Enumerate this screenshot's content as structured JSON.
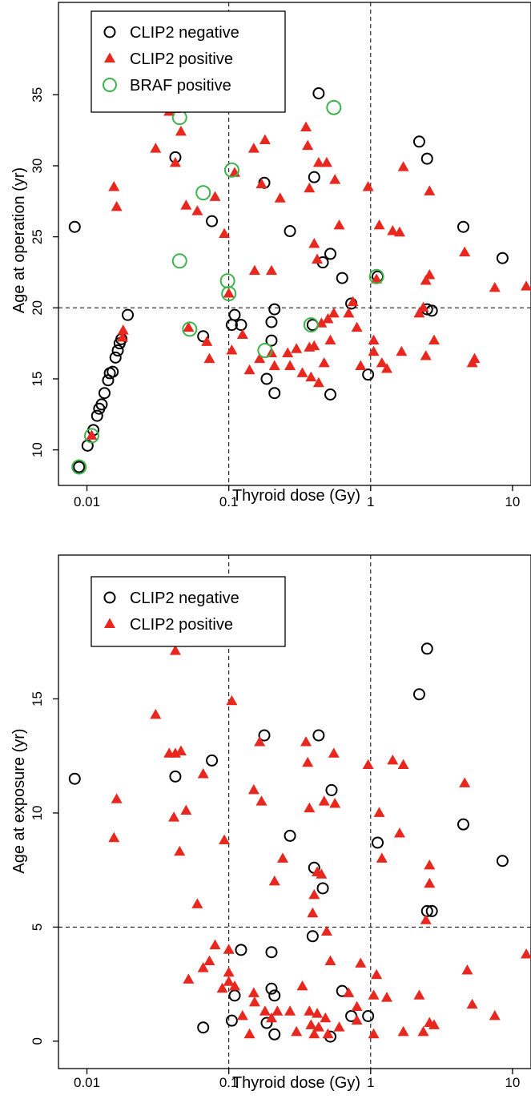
{
  "chart_data": [
    {
      "type": "scatter",
      "title": "",
      "xlabel": "Thyroid dose (Gy)",
      "ylabel": "Age at operation (yr)",
      "x_scale": "log",
      "xlim": [
        0.0063,
        13.5
      ],
      "ylim": [
        7.5,
        41.5
      ],
      "x_ticks": [
        0.01,
        0.1,
        1,
        10
      ],
      "x_tick_labels": [
        "0.01",
        "0.1",
        "1",
        "10"
      ],
      "y_ticks": [
        10,
        15,
        20,
        25,
        30,
        35
      ],
      "y_tick_labels": [
        "10",
        "15",
        "20",
        "25",
        "30",
        "35"
      ],
      "reference_lines": {
        "x": [
          0.1,
          1
        ],
        "y": [
          20
        ]
      },
      "legend_position": "top-left",
      "grid": false,
      "series": [
        {
          "name": "CLIP2 negative",
          "marker": "open-circle",
          "color": "#000000",
          "points": [
            [
              0.0082,
              25.7
            ],
            [
              0.0088,
              8.8
            ],
            [
              0.0101,
              10.3
            ],
            [
              0.0111,
              11.4
            ],
            [
              0.0118,
              12.4
            ],
            [
              0.0122,
              12.9
            ],
            [
              0.0127,
              13.2
            ],
            [
              0.0133,
              14.0
            ],
            [
              0.0141,
              14.9
            ],
            [
              0.0145,
              15.4
            ],
            [
              0.0152,
              15.5
            ],
            [
              0.0159,
              16.5
            ],
            [
              0.0165,
              17.0
            ],
            [
              0.017,
              17.5
            ],
            [
              0.0175,
              17.8
            ],
            [
              0.0194,
              19.5
            ],
            [
              0.042,
              30.6
            ],
            [
              0.066,
              18.0
            ],
            [
              0.076,
              26.1
            ],
            [
              0.105,
              18.8
            ],
            [
              0.11,
              19.5
            ],
            [
              0.122,
              18.8
            ],
            [
              0.178,
              28.8
            ],
            [
              0.185,
              15.0
            ],
            [
              0.2,
              19.0
            ],
            [
              0.21,
              14.0
            ],
            [
              0.2,
              17.7
            ],
            [
              0.21,
              19.9
            ],
            [
              0.27,
              25.4
            ],
            [
              0.39,
              18.8
            ],
            [
              0.4,
              29.2
            ],
            [
              0.43,
              35.1
            ],
            [
              0.46,
              23.2
            ],
            [
              0.52,
              23.8
            ],
            [
              0.63,
              22.1
            ],
            [
              0.73,
              20.3
            ],
            [
              0.52,
              13.9
            ],
            [
              0.96,
              15.3
            ],
            [
              1.12,
              22.2
            ],
            [
              2.2,
              31.7
            ],
            [
              2.5,
              30.5
            ],
            [
              2.5,
              19.9
            ],
            [
              2.7,
              19.8
            ],
            [
              4.5,
              25.7
            ],
            [
              8.5,
              23.5
            ]
          ]
        },
        {
          "name": "CLIP2 positive",
          "marker": "filled-triangle",
          "color": "#e8281e",
          "points": [
            [
              0.0108,
              11.0
            ],
            [
              0.0155,
              28.5
            ],
            [
              0.0162,
              27.1
            ],
            [
              0.0178,
              17.9
            ],
            [
              0.018,
              18.4
            ],
            [
              0.0305,
              31.2
            ],
            [
              0.038,
              33.8
            ],
            [
              0.042,
              30.2
            ],
            [
              0.042,
              34.0
            ],
            [
              0.046,
              32.4
            ],
            [
              0.05,
              27.2
            ],
            [
              0.052,
              18.6
            ],
            [
              0.06,
              26.8
            ],
            [
              0.07,
              17.6
            ],
            [
              0.08,
              27.8
            ],
            [
              0.093,
              25.2
            ],
            [
              0.073,
              16.4
            ],
            [
              0.1,
              21.0
            ],
            [
              0.105,
              17.0
            ],
            [
              0.11,
              29.5
            ],
            [
              0.125,
              18.1
            ],
            [
              0.14,
              15.6
            ],
            [
              0.15,
              31.2
            ],
            [
              0.152,
              22.6
            ],
            [
              0.165,
              16.4
            ],
            [
              0.17,
              28.7
            ],
            [
              0.18,
              31.8
            ],
            [
              0.2,
              22.6
            ],
            [
              0.2,
              16.8
            ],
            [
              0.21,
              15.9
            ],
            [
              0.23,
              27.7
            ],
            [
              0.26,
              16.8
            ],
            [
              0.27,
              15.9
            ],
            [
              0.3,
              17.1
            ],
            [
              0.33,
              15.4
            ],
            [
              0.35,
              32.7
            ],
            [
              0.36,
              31.4
            ],
            [
              0.37,
              28.4
            ],
            [
              0.37,
              17.2
            ],
            [
              0.38,
              15.1
            ],
            [
              0.4,
              17.3
            ],
            [
              0.4,
              24.5
            ],
            [
              0.42,
              23.4
            ],
            [
              0.43,
              30.2
            ],
            [
              0.43,
              14.7
            ],
            [
              0.45,
              18.9
            ],
            [
              0.47,
              16.1
            ],
            [
              0.49,
              30.2
            ],
            [
              0.5,
              19.2
            ],
            [
              0.52,
              17.7
            ],
            [
              0.55,
              19.6
            ],
            [
              0.56,
              29.0
            ],
            [
              0.6,
              25.8
            ],
            [
              0.7,
              19.6
            ],
            [
              0.75,
              20.4
            ],
            [
              0.8,
              18.6
            ],
            [
              0.85,
              15.9
            ],
            [
              0.96,
              28.5
            ],
            [
              1.05,
              17.7
            ],
            [
              1.05,
              16.9
            ],
            [
              1.1,
              22.0
            ],
            [
              1.15,
              25.8
            ],
            [
              1.2,
              16.1
            ],
            [
              1.3,
              15.7
            ],
            [
              1.43,
              25.4
            ],
            [
              1.6,
              25.3
            ],
            [
              1.65,
              16.9
            ],
            [
              1.7,
              29.9
            ],
            [
              2.2,
              19.6
            ],
            [
              2.35,
              20.0
            ],
            [
              2.45,
              16.6
            ],
            [
              2.45,
              21.9
            ],
            [
              2.6,
              28.2
            ],
            [
              2.6,
              22.3
            ],
            [
              2.8,
              17.7
            ],
            [
              4.6,
              23.9
            ],
            [
              5.2,
              16.1
            ],
            [
              5.4,
              16.4
            ],
            [
              7.5,
              21.4
            ],
            [
              12.5,
              21.5
            ]
          ]
        },
        {
          "name": "BRAF positive",
          "marker": "open-circle",
          "color": "#3cb44b",
          "points": [
            [
              0.0088,
              8.8
            ],
            [
              0.0108,
              11.0
            ],
            [
              0.045,
              33.4
            ],
            [
              0.045,
              23.3
            ],
            [
              0.053,
              18.5
            ],
            [
              0.066,
              28.1
            ],
            [
              0.098,
              21.9
            ],
            [
              0.1,
              21.0
            ],
            [
              0.105,
              29.7
            ],
            [
              0.18,
              17.0
            ],
            [
              0.38,
              18.8
            ],
            [
              0.55,
              34.1
            ],
            [
              1.1,
              22.2
            ]
          ]
        }
      ]
    },
    {
      "type": "scatter",
      "title": "",
      "xlabel": "Thyroid dose (Gy)",
      "ylabel": "Age at exposure (yr)",
      "x_scale": "log",
      "xlim": [
        0.0063,
        13.5
      ],
      "ylim": [
        -1.2,
        21.3
      ],
      "x_ticks": [
        0.01,
        0.1,
        1,
        10
      ],
      "x_tick_labels": [
        "0.01",
        "0.1",
        "1",
        "10"
      ],
      "y_ticks": [
        0,
        5,
        10,
        15
      ],
      "y_tick_labels": [
        "0",
        "5",
        "10",
        "15"
      ],
      "reference_lines": {
        "x": [
          0.1,
          1
        ],
        "y": [
          5
        ]
      },
      "legend_position": "top-left",
      "grid": false,
      "series": [
        {
          "name": "CLIP2 negative",
          "marker": "open-circle",
          "color": "#000000",
          "points": [
            [
              0.0082,
              11.5
            ],
            [
              0.042,
              11.6
            ],
            [
              0.066,
              0.6
            ],
            [
              0.076,
              12.3
            ],
            [
              0.105,
              0.9
            ],
            [
              0.11,
              2.0
            ],
            [
              0.122,
              4.0
            ],
            [
              0.178,
              13.4
            ],
            [
              0.185,
              0.8
            ],
            [
              0.2,
              2.3
            ],
            [
              0.2,
              3.9
            ],
            [
              0.21,
              0.3
            ],
            [
              0.21,
              2.0
            ],
            [
              0.27,
              9.0
            ],
            [
              0.39,
              4.6
            ],
            [
              0.4,
              7.6
            ],
            [
              0.43,
              13.4
            ],
            [
              0.46,
              6.7
            ],
            [
              0.52,
              0.2
            ],
            [
              0.53,
              11.0
            ],
            [
              0.63,
              2.2
            ],
            [
              0.73,
              1.1
            ],
            [
              0.96,
              1.1
            ],
            [
              1.12,
              8.7
            ],
            [
              2.2,
              15.2
            ],
            [
              2.5,
              17.2
            ],
            [
              2.5,
              5.7
            ],
            [
              2.7,
              5.7
            ],
            [
              4.5,
              9.5
            ],
            [
              8.5,
              7.9
            ]
          ]
        },
        {
          "name": "CLIP2 positive",
          "marker": "filled-triangle",
          "color": "#e8281e",
          "points": [
            [
              0.0155,
              8.9
            ],
            [
              0.0162,
              10.6
            ],
            [
              0.0305,
              14.3
            ],
            [
              0.038,
              12.6
            ],
            [
              0.041,
              9.8
            ],
            [
              0.042,
              17.1
            ],
            [
              0.042,
              12.6
            ],
            [
              0.046,
              12.7
            ],
            [
              0.045,
              8.3
            ],
            [
              0.05,
              10.1
            ],
            [
              0.052,
              2.7
            ],
            [
              0.06,
              6.0
            ],
            [
              0.066,
              11.7
            ],
            [
              0.066,
              3.2
            ],
            [
              0.073,
              3.5
            ],
            [
              0.08,
              4.2
            ],
            [
              0.093,
              8.8
            ],
            [
              0.09,
              2.3
            ],
            [
              0.1,
              4.0
            ],
            [
              0.1,
              3.0
            ],
            [
              0.1,
              2.6
            ],
            [
              0.105,
              14.9
            ],
            [
              0.11,
              2.4
            ],
            [
              0.125,
              1.1
            ],
            [
              0.14,
              0.3
            ],
            [
              0.15,
              11.0
            ],
            [
              0.15,
              2.1
            ],
            [
              0.152,
              1.7
            ],
            [
              0.165,
              13.1
            ],
            [
              0.17,
              10.5
            ],
            [
              0.18,
              1.3
            ],
            [
              0.2,
              1.0
            ],
            [
              0.21,
              7.0
            ],
            [
              0.22,
              1.3
            ],
            [
              0.24,
              8.0
            ],
            [
              0.27,
              1.3
            ],
            [
              0.3,
              0.4
            ],
            [
              0.33,
              2.4
            ],
            [
              0.35,
              13.1
            ],
            [
              0.36,
              12.2
            ],
            [
              0.37,
              1.3
            ],
            [
              0.37,
              10.2
            ],
            [
              0.38,
              0.7
            ],
            [
              0.39,
              5.6
            ],
            [
              0.4,
              0.3
            ],
            [
              0.4,
              6.4
            ],
            [
              0.42,
              7.4
            ],
            [
              0.42,
              1.2
            ],
            [
              0.43,
              0.6
            ],
            [
              0.45,
              7.3
            ],
            [
              0.47,
              10.5
            ],
            [
              0.48,
              1.0
            ],
            [
              0.49,
              4.8
            ],
            [
              0.5,
              0.3
            ],
            [
              0.52,
              3.5
            ],
            [
              0.55,
              12.6
            ],
            [
              0.56,
              10.4
            ],
            [
              0.6,
              0.6
            ],
            [
              0.7,
              2.1
            ],
            [
              0.8,
              1.5
            ],
            [
              0.8,
              0.9
            ],
            [
              0.85,
              3.4
            ],
            [
              0.96,
              12.1
            ],
            [
              1.05,
              2.0
            ],
            [
              1.05,
              0.3
            ],
            [
              1.1,
              2.9
            ],
            [
              1.15,
              10.0
            ],
            [
              1.2,
              8.0
            ],
            [
              1.3,
              1.9
            ],
            [
              1.43,
              12.3
            ],
            [
              1.6,
              9.1
            ],
            [
              1.7,
              12.1
            ],
            [
              1.7,
              0.4
            ],
            [
              2.2,
              2.0
            ],
            [
              2.35,
              0.4
            ],
            [
              2.45,
              5.3
            ],
            [
              2.6,
              7.7
            ],
            [
              2.6,
              6.9
            ],
            [
              2.6,
              0.8
            ],
            [
              2.8,
              0.7
            ],
            [
              4.6,
              11.3
            ],
            [
              4.8,
              3.1
            ],
            [
              5.2,
              1.6
            ],
            [
              7.5,
              1.1
            ],
            [
              12.5,
              3.8
            ]
          ]
        }
      ]
    }
  ]
}
